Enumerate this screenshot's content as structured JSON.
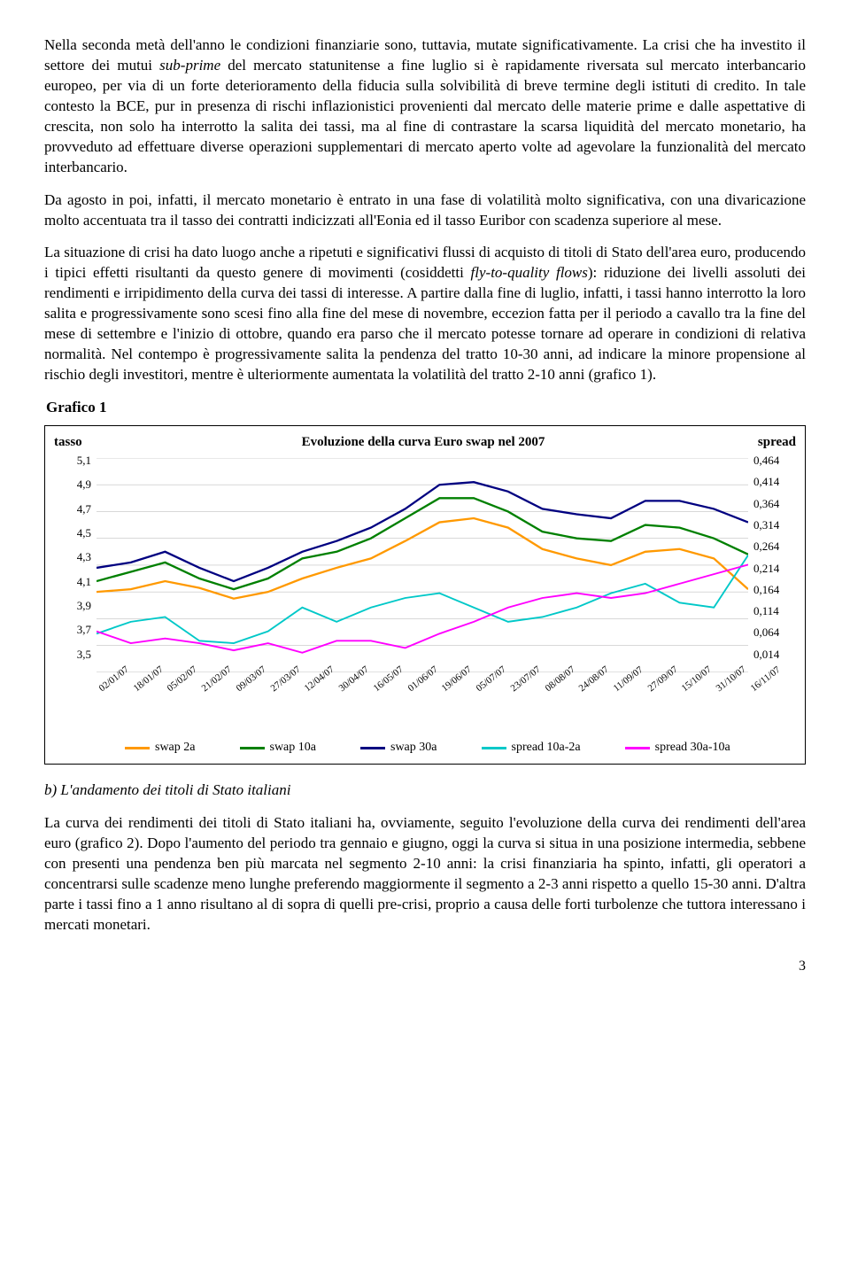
{
  "paragraphs": {
    "p1a": "Nella seconda metà dell'anno le condizioni finanziarie sono, tuttavia, mutate significativamente. La crisi che ha investito il settore dei mutui ",
    "p1it": "sub-prime",
    "p1b": " del mercato statunitense a fine luglio si è rapidamente riversata sul mercato interbancario europeo, per via di un forte deterioramento della fiducia sulla solvibilità di breve termine degli istituti di credito. In tale contesto la BCE, pur in presenza di rischi inflazionistici provenienti dal mercato delle materie prime e dalle aspettative di crescita, non solo ha interrotto la salita dei tassi, ma al fine di contrastare la scarsa liquidità del mercato monetario, ha provveduto ad effettuare diverse operazioni supplementari di mercato aperto volte ad agevolare la funzionalità del mercato interbancario.",
    "p2": "Da agosto in poi, infatti, il mercato monetario è entrato in una fase di volatilità molto significativa, con una divaricazione molto accentuata tra il tasso dei contratti indicizzati all'Eonia ed il tasso Euribor con scadenza superiore al mese.",
    "p3a": "La situazione di crisi ha dato luogo anche a ripetuti e significativi flussi di acquisto di titoli di Stato dell'area euro, producendo i tipici effetti risultanti da questo genere di movimenti (cosiddetti ",
    "p3it": "fly-to-quality flows",
    "p3b": "): riduzione dei livelli assoluti dei rendimenti e irripidimento della curva dei tassi di interesse. A partire dalla fine di luglio, infatti, i tassi hanno interrotto la loro salita e progressivamente sono scesi fino alla fine del mese di novembre, eccezion fatta per il periodo a cavallo tra la fine del mese di settembre e l'inizio di ottobre, quando era parso che il mercato potesse tornare ad operare in condizioni di relativa normalità. Nel contempo è progressivamente salita la pendenza del tratto 10-30 anni, ad indicare la minore propensione al rischio degli investitori, mentre è ulteriormente aumentata la volatilità del tratto 2-10 anni (grafico 1).",
    "p4": "La curva dei rendimenti dei titoli di Stato italiani ha, ovviamente, seguito l'evoluzione della curva dei rendimenti dell'area euro (grafico 2). Dopo l'aumento del periodo tra gennaio e giugno, oggi la curva si situa in una posizione intermedia, sebbene con presenti una pendenza ben più marcata nel segmento 2-10 anni: la crisi finanziaria ha spinto, infatti, gli operatori a concentrarsi sulle scadenze meno lunghe preferendo maggiormente il segmento a 2-3 anni rispetto a quello 15-30 anni. D'altra parte i tassi fino a 1 anno risultano al di sopra di quelli pre-crisi, proprio a causa delle forti turbolenze che tuttora interessano i mercati monetari."
  },
  "chartLabel": "Grafico 1",
  "sectionB": "b) L'andamento dei titoli di Stato italiani",
  "pageNumber": "3",
  "chart": {
    "type": "line",
    "title": "Evoluzione della curva Euro swap nel 2007",
    "axisLeftLabel": "tasso",
    "axisRightLabel": "spread",
    "background": "#ffffff",
    "gridColor": "#c0c0c0",
    "yLeft": {
      "min": 3.5,
      "max": 5.1,
      "ticks": [
        "5,1",
        "4,9",
        "4,7",
        "4,5",
        "4,3",
        "4,1",
        "3,9",
        "3,7",
        "3,5"
      ]
    },
    "yRight": {
      "min": 0.014,
      "max": 0.464,
      "ticks": [
        "0,464",
        "0,414",
        "0,364",
        "0,314",
        "0,264",
        "0,214",
        "0,164",
        "0,114",
        "0,064",
        "0,014"
      ]
    },
    "xLabels": [
      "02/01/07",
      "18/01/07",
      "05/02/07",
      "21/02/07",
      "09/03/07",
      "27/03/07",
      "12/04/07",
      "30/04/07",
      "16/05/07",
      "01/06/07",
      "19/06/07",
      "05/07/07",
      "23/07/07",
      "08/08/07",
      "24/08/07",
      "11/09/07",
      "27/09/07",
      "15/10/07",
      "31/10/07",
      "16/11/07"
    ],
    "series": [
      {
        "name": "swap 2a",
        "axis": "left",
        "color": "#ff9900",
        "width": 2.2,
        "values": [
          4.1,
          4.12,
          4.18,
          4.13,
          4.05,
          4.1,
          4.2,
          4.28,
          4.35,
          4.48,
          4.62,
          4.65,
          4.58,
          4.42,
          4.35,
          4.3,
          4.4,
          4.42,
          4.35,
          4.12
        ]
      },
      {
        "name": "swap 10a",
        "axis": "left",
        "color": "#008000",
        "width": 2.2,
        "values": [
          4.18,
          4.25,
          4.32,
          4.2,
          4.12,
          4.2,
          4.35,
          4.4,
          4.5,
          4.65,
          4.8,
          4.8,
          4.7,
          4.55,
          4.5,
          4.48,
          4.6,
          4.58,
          4.5,
          4.38
        ]
      },
      {
        "name": "swap 30a",
        "axis": "left",
        "color": "#000080",
        "width": 2.2,
        "values": [
          4.28,
          4.32,
          4.4,
          4.28,
          4.18,
          4.28,
          4.4,
          4.48,
          4.58,
          4.72,
          4.9,
          4.92,
          4.85,
          4.72,
          4.68,
          4.65,
          4.78,
          4.78,
          4.72,
          4.62
        ]
      },
      {
        "name": "spread 10a-2a",
        "axis": "right",
        "color": "#00c8c8",
        "width": 1.8,
        "values": [
          0.095,
          0.12,
          0.13,
          0.08,
          0.075,
          0.1,
          0.15,
          0.12,
          0.15,
          0.17,
          0.18,
          0.15,
          0.12,
          0.13,
          0.15,
          0.18,
          0.2,
          0.16,
          0.15,
          0.26
        ]
      },
      {
        "name": "spread 30a-10a",
        "axis": "right",
        "color": "#ff00ff",
        "width": 1.8,
        "values": [
          0.1,
          0.075,
          0.085,
          0.075,
          0.06,
          0.075,
          0.055,
          0.08,
          0.08,
          0.065,
          0.095,
          0.12,
          0.15,
          0.17,
          0.18,
          0.17,
          0.18,
          0.2,
          0.22,
          0.24
        ]
      }
    ]
  }
}
